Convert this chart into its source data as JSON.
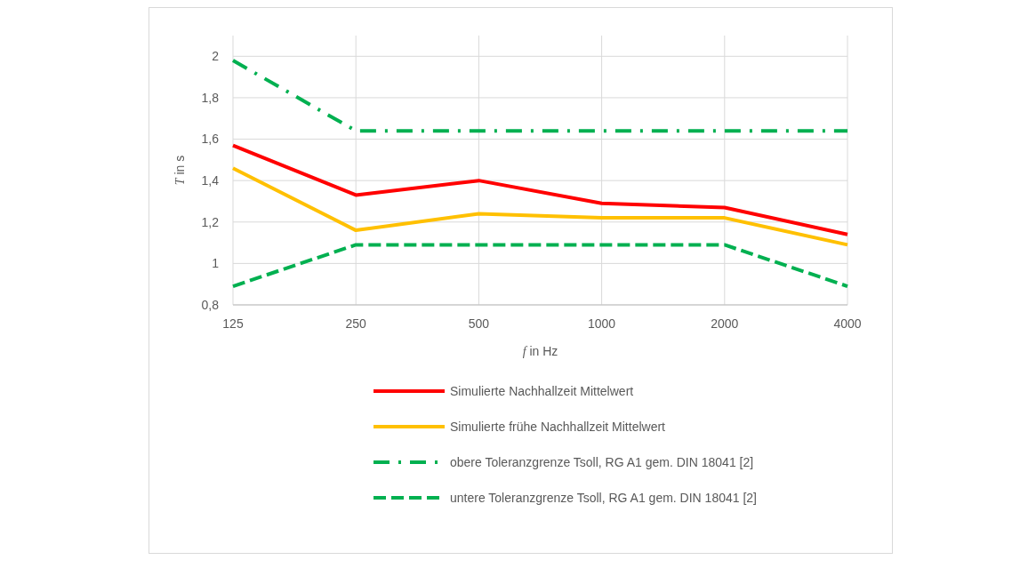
{
  "chart_data": {
    "type": "line",
    "xlabel": "f in Hz",
    "ylabel": "T in s",
    "categories": [
      "125",
      "250",
      "500",
      "1000",
      "2000",
      "4000"
    ],
    "ylim": [
      0.8,
      2.1
    ],
    "yticks": [
      {
        "value": 0.8,
        "label": "0,8"
      },
      {
        "value": 1,
        "label": "1"
      },
      {
        "value": 1.2,
        "label": "1,2"
      },
      {
        "value": 1.4,
        "label": "1,4"
      },
      {
        "value": 1.6,
        "label": "1,6"
      },
      {
        "value": 1.8,
        "label": "1,8"
      },
      {
        "value": 2,
        "label": "2"
      }
    ],
    "grid": true,
    "legend": "bottom",
    "marker": "none",
    "series": [
      {
        "name": "Simulierte Nachhallzeit Mittelwert",
        "color": "#ff0000",
        "line_style": "solid",
        "values": [
          1.57,
          1.33,
          1.4,
          1.29,
          1.27,
          1.14
        ]
      },
      {
        "name": "Simulierte frühe Nachhallzeit Mittelwert",
        "color": "#ffc000",
        "line_style": "solid",
        "values": [
          1.46,
          1.16,
          1.24,
          1.22,
          1.22,
          1.09
        ]
      },
      {
        "name": "obere Toleranzgrenze Tsoll, RG A1 gem. DIN 18041 [2]",
        "color": "#00b050",
        "line_style": "dashdot",
        "values": [
          1.98,
          1.64,
          1.64,
          1.64,
          1.64,
          1.64
        ]
      },
      {
        "name": "untere Toleranzgrenze Tsoll, RG A1 gem. DIN 18041 [2]",
        "color": "#00b050",
        "line_style": "dashed",
        "values": [
          0.89,
          1.09,
          1.09,
          1.09,
          1.09,
          0.89
        ]
      }
    ]
  }
}
